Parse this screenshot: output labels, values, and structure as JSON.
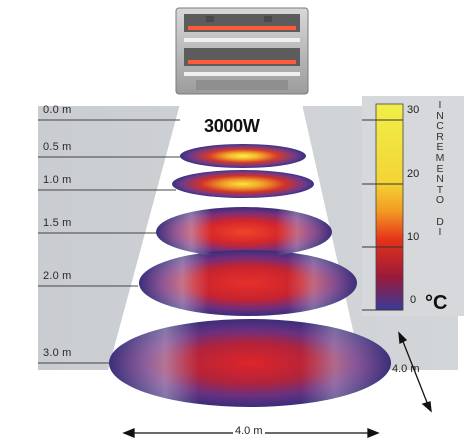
{
  "heater": {
    "power": "3000W"
  },
  "heights": [
    "0.0 m",
    "0.5 m",
    "1.0 m",
    "1.5 m",
    "2.0 m",
    "3.0 m"
  ],
  "scale": {
    "ticks": [
      "30",
      "20",
      "10",
      "0"
    ],
    "title_letters": [
      "I",
      "N",
      "C",
      "R",
      "E",
      "M",
      "E",
      "N",
      "T",
      "O",
      "",
      "D",
      "I"
    ],
    "unit": "°C"
  },
  "dimensions": {
    "width": "4.0 m",
    "depth": "4.0 m"
  },
  "colors": {
    "panel": "#cdd0d3",
    "disc_edge": "#3a2e7a",
    "hot": "#e41d12",
    "warm": "#f6e93c",
    "cool": "#4a3a8a"
  },
  "icons": {
    "heater": "heater-icon",
    "arrow": "double-arrow-icon"
  }
}
